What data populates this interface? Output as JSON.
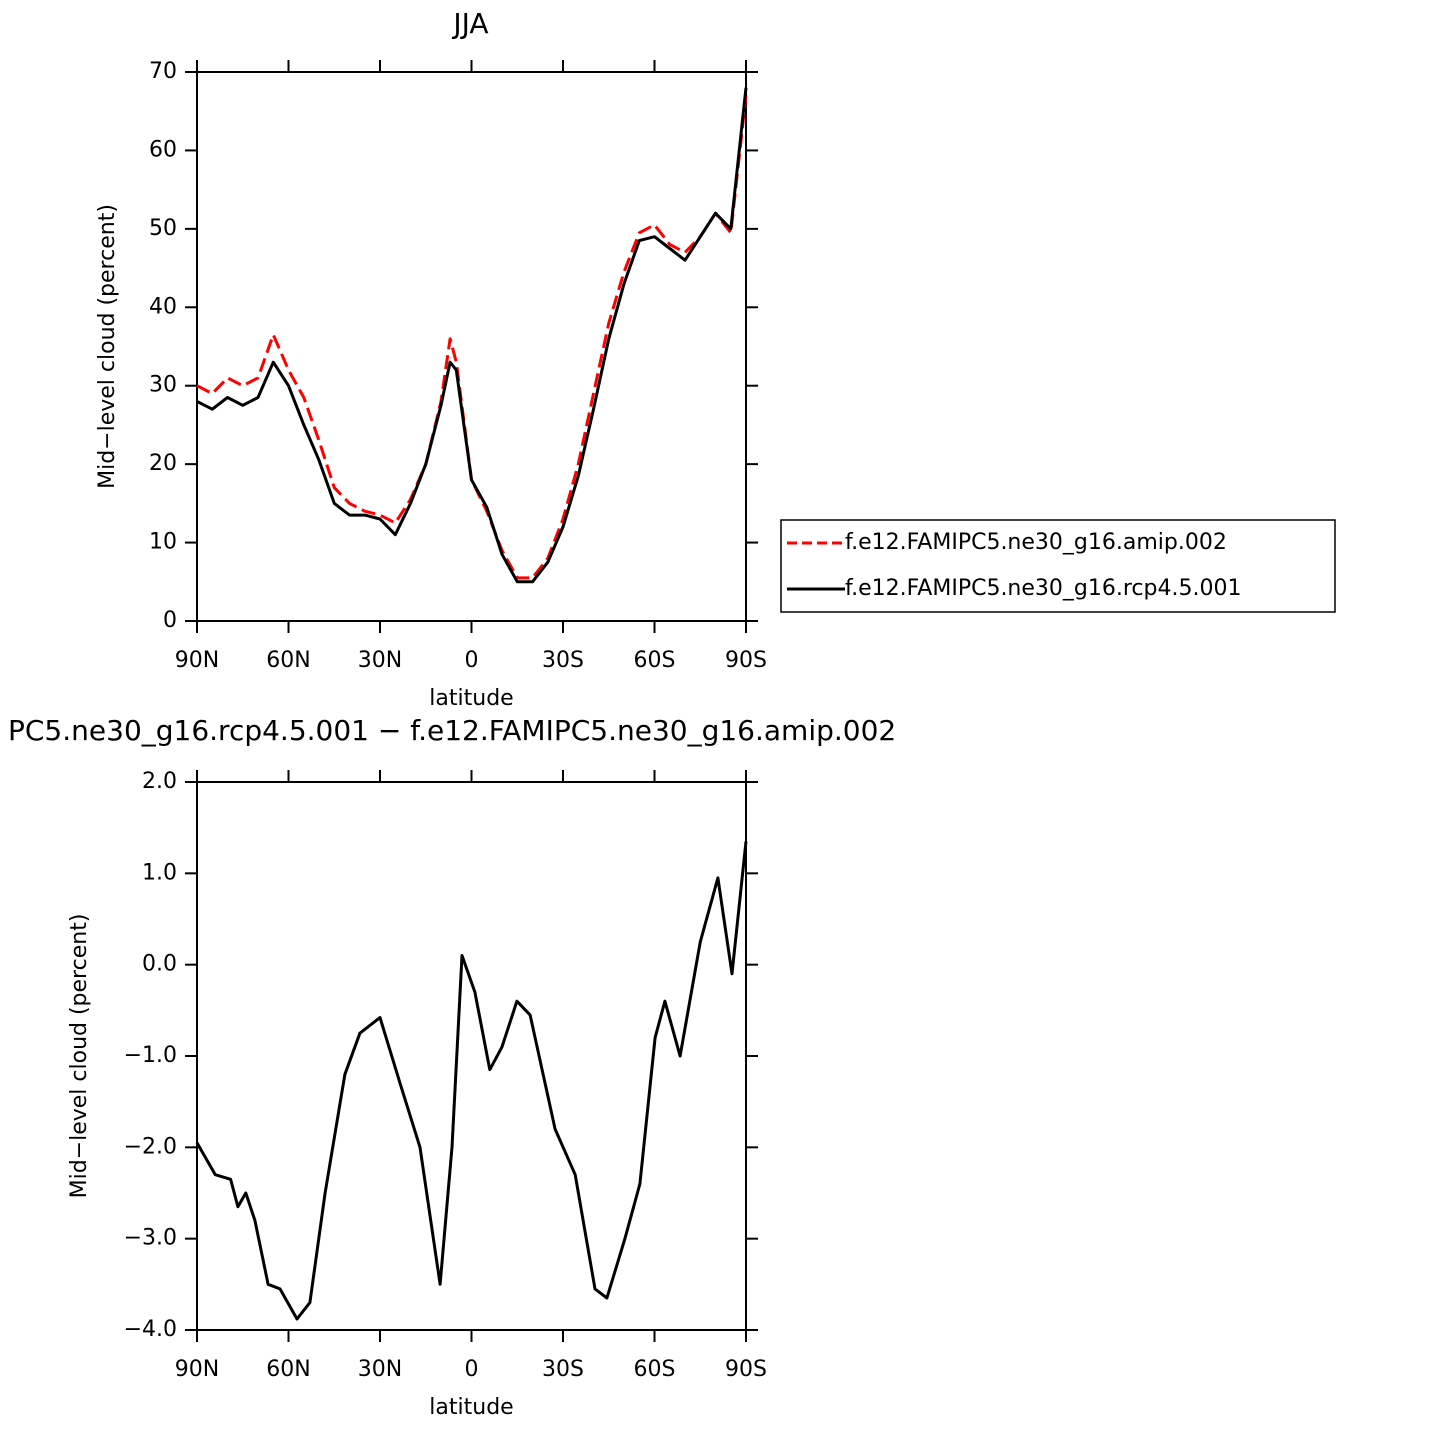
{
  "chart_data": [
    {
      "type": "line",
      "title": "JJA",
      "xlabel": "latitude",
      "ylabel": "Mid−level cloud (percent)",
      "x": [
        90,
        85,
        80,
        75,
        70,
        65,
        60,
        55,
        50,
        45,
        40,
        35,
        30,
        25,
        20,
        15,
        10,
        7,
        5,
        0,
        -5,
        -10,
        -15,
        -20,
        -25,
        -30,
        -35,
        -40,
        -45,
        -50,
        -55,
        -60,
        -65,
        -70,
        -75,
        -80,
        -85,
        -90
      ],
      "series": [
        {
          "name": "f.e12.FAMIPC5.ne30_g16.amip.002",
          "color": "#ff0000",
          "dash": true,
          "values": [
            30,
            29,
            31,
            30,
            31,
            36.5,
            32,
            28.5,
            23,
            17,
            15,
            14,
            13.5,
            12.5,
            15.5,
            20,
            28,
            36,
            33,
            18,
            14,
            9,
            5.5,
            5.5,
            8,
            13,
            20,
            29,
            38,
            44.5,
            49.5,
            50.5,
            48,
            47,
            49,
            52,
            49.5,
            67
          ]
        },
        {
          "name": "f.e12.FAMIPC5.ne30_g16.rcp4.5.001",
          "color": "#000000",
          "dash": false,
          "values": [
            28,
            27,
            28.5,
            27.5,
            28.5,
            33,
            30,
            25,
            20.5,
            15,
            13.5,
            13.5,
            13,
            11,
            15,
            20,
            27.5,
            33,
            32,
            18,
            14.5,
            8.5,
            5,
            5,
            7.5,
            12,
            18.5,
            27,
            36,
            43,
            48.5,
            49,
            47.5,
            46,
            49,
            52,
            50,
            68
          ]
        }
      ],
      "xlim": [
        90,
        -90
      ],
      "xticks": [
        {
          "value": 90,
          "label": "90N"
        },
        {
          "value": 60,
          "label": "60N"
        },
        {
          "value": 30,
          "label": "30N"
        },
        0,
        {
          "value": -30,
          "label": "30S"
        },
        {
          "value": -60,
          "label": "60S"
        },
        {
          "value": -90,
          "label": "90S"
        }
      ],
      "ylim": [
        0,
        70
      ],
      "yticks": [
        0,
        10,
        20,
        30,
        40,
        50,
        60,
        70
      ],
      "legend": "right"
    },
    {
      "type": "line",
      "title": "PC5.ne30_g16.rcp4.5.001 − f.e12.FAMIPC5.ne30_g16.amip.002",
      "xlabel": "latitude",
      "ylabel": "Mid−level cloud (percent)",
      "x": [
        90,
        84,
        79,
        76.6,
        74,
        71,
        66.7,
        62.8,
        57.2,
        53,
        48,
        41.5,
        36.6,
        30,
        23.4,
        16.9,
        10.3,
        6.4,
        3.1,
        -1.1,
        -6,
        -10,
        -14.9,
        -19.2,
        -27.4,
        -34,
        -40.5,
        -44.4,
        -50.3,
        -55.2,
        -60.2,
        -63.4,
        -68.4,
        -75,
        -80.8,
        -85.4,
        -90
      ],
      "values": [
        -1.95,
        -2.3,
        -2.35,
        -2.65,
        -2.5,
        -2.8,
        -3.5,
        -3.55,
        -3.88,
        -3.7,
        -2.5,
        -1.2,
        -0.75,
        -0.58,
        -1.3,
        -2.0,
        -3.5,
        -2.0,
        0.1,
        -0.3,
        -1.15,
        -0.9,
        -0.4,
        -0.55,
        -1.8,
        -2.3,
        -3.55,
        -3.65,
        -3.0,
        -2.4,
        -0.8,
        -0.4,
        -1.0,
        0.25,
        0.95,
        -0.1,
        1.35
      ],
      "color": "#000000",
      "xlim": [
        90,
        -90
      ],
      "xticks": [
        {
          "value": 90,
          "label": "90N"
        },
        {
          "value": 60,
          "label": "60N"
        },
        {
          "value": 30,
          "label": "30N"
        },
        0,
        {
          "value": -30,
          "label": "30S"
        },
        {
          "value": -60,
          "label": "60S"
        },
        {
          "value": -90,
          "label": "90S"
        }
      ],
      "ylim": [
        -4,
        2
      ],
      "yticks": [
        {
          "value": 2,
          "label": "2.0"
        },
        {
          "value": 1,
          "label": "1.0"
        },
        {
          "value": 0,
          "label": "0.0"
        },
        {
          "value": -1,
          "label": "−1.0"
        },
        {
          "value": -2,
          "label": "−2.0"
        },
        {
          "value": -3,
          "label": "−3.0"
        },
        {
          "value": -4,
          "label": "−4.0"
        }
      ]
    }
  ]
}
